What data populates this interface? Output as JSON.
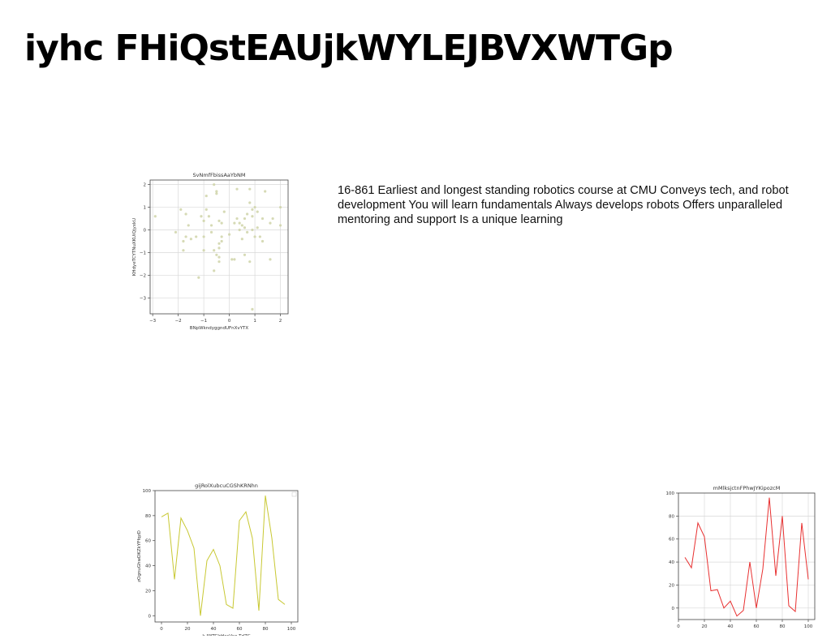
{
  "page": {
    "title": "iyhc FHiQstEAUjkWYLEJBVXWTGp",
    "paragraph": "16-861 Earliest and longest standing robotics course at CMU Conveys tech, and robot development You will learn fundamentals Always develops robots Offers unparalleled mentoring and support Is a unique learning"
  },
  "chart_data": [
    {
      "type": "scatter",
      "title": "SvNmfFbissAaYbNM",
      "xlabel": "BNpWkndyggndUFnXvYTX",
      "ylabel": "KHdyeTCYTNuXKUiQjyxkU",
      "xlim": [
        -3.1,
        2.3
      ],
      "ylim": [
        -3.7,
        2.2
      ],
      "xticks": [
        -3,
        -2,
        -1,
        0,
        1,
        2
      ],
      "yticks": [
        -3,
        -2,
        -1,
        0,
        1,
        2
      ],
      "grid": true,
      "color": "#cfd4a8",
      "x": [
        -2.9,
        -2.1,
        -1.9,
        -1.8,
        -1.8,
        -1.7,
        -1.7,
        -1.6,
        -1.5,
        -1.3,
        -1.1,
        -1.0,
        -1.0,
        -1.0,
        -0.9,
        -0.9,
        -0.8,
        -0.7,
        -0.7,
        -0.6,
        -0.6,
        -0.6,
        -0.5,
        -0.5,
        -0.5,
        -0.4,
        -0.4,
        -0.4,
        -0.4,
        -0.4,
        -0.3,
        -0.3,
        -0.3,
        -0.2,
        0.0,
        0.1,
        0.2,
        0.2,
        0.3,
        0.3,
        0.4,
        0.4,
        0.5,
        0.5,
        0.6,
        0.6,
        0.6,
        0.7,
        0.7,
        0.8,
        0.8,
        0.8,
        0.9,
        0.9,
        0.9,
        1.0,
        1.0,
        1.1,
        1.1,
        1.2,
        1.3,
        1.3,
        1.4,
        1.6,
        1.6,
        1.7,
        2.0,
        2.0,
        -1.2,
        0.9
      ],
      "y": [
        0.6,
        -0.1,
        0.9,
        -0.5,
        -0.9,
        0.7,
        -0.3,
        0.2,
        -0.4,
        -0.3,
        0.6,
        0.4,
        -0.3,
        -0.9,
        1.5,
        0.9,
        0.6,
        0.2,
        -0.1,
        -0.9,
        -1.8,
        2.0,
        1.6,
        -1.1,
        1.7,
        0.4,
        -0.6,
        -0.8,
        -1.2,
        -1.4,
        -0.3,
        0.3,
        -0.5,
        0.8,
        -0.2,
        -1.3,
        -1.3,
        0.3,
        0.5,
        1.8,
        0.3,
        0.0,
        0.2,
        -0.4,
        0.5,
        -1.1,
        0.1,
        0.7,
        -0.1,
        1.8,
        1.2,
        -1.4,
        0.9,
        0.6,
        0.0,
        1.0,
        -0.3,
        0.1,
        0.8,
        -0.3,
        0.5,
        -0.5,
        1.7,
        -1.3,
        0.3,
        0.5,
        1.0,
        0.2,
        -2.1,
        -3.5
      ]
    },
    {
      "type": "line",
      "title": "gijRolXubcuCGShKRNhn",
      "xlabel": "k IWTCIrHccVao TdZC",
      "ylabel": "zOgnuGhwDKZkYFfqzD",
      "xlim": [
        -5,
        105
      ],
      "ylim": [
        -5,
        100
      ],
      "xticks": [
        0,
        20,
        40,
        60,
        80,
        100
      ],
      "yticks": [
        0,
        20,
        40,
        60,
        80,
        100
      ],
      "grid": false,
      "color": "#c8c832",
      "x": [
        0,
        5,
        10,
        15,
        20,
        25,
        30,
        35,
        40,
        45,
        50,
        55,
        60,
        65,
        70,
        75,
        80,
        85,
        90,
        95,
        100
      ],
      "y": [
        79,
        82,
        29,
        78,
        68,
        54,
        0,
        44,
        53,
        40,
        9,
        6,
        76,
        83,
        62,
        4,
        96,
        62,
        13,
        9,
        null
      ]
    },
    {
      "type": "line",
      "title": "mMlksjctnFPhwJYKipozcM",
      "xlabel": "",
      "ylabel": "",
      "xlim": [
        0,
        105
      ],
      "ylim": [
        -10,
        100
      ],
      "xticks": [
        0,
        20,
        40,
        60,
        80,
        100
      ],
      "yticks": [
        0,
        20,
        40,
        60,
        80,
        100
      ],
      "grid": true,
      "color": "#e83030",
      "x": [
        5,
        10,
        15,
        20,
        25,
        30,
        35,
        40,
        45,
        50,
        55,
        60,
        65,
        70,
        75,
        80,
        85,
        90,
        95,
        100
      ],
      "y": [
        44,
        35,
        74,
        62,
        15,
        16,
        0,
        6,
        -7,
        -2,
        40,
        0,
        34,
        96,
        28,
        80,
        2,
        -3,
        74,
        25
      ]
    }
  ]
}
